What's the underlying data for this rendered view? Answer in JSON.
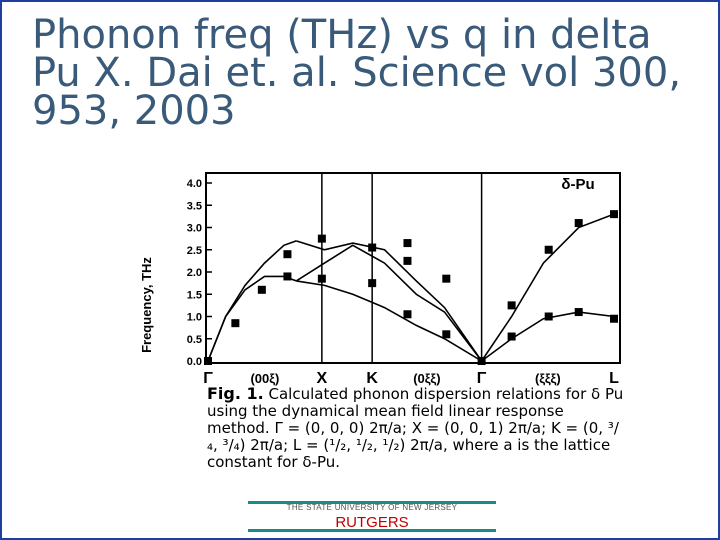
{
  "slide": {
    "title": "Phonon freq (THz) vs q in delta Pu X. Dai et. al. Science vol 300, 953, 2003",
    "caption_label": "Fig. 1.",
    "caption_text": "Calculated phonon dispersion relations for δ Pu using the dynamical mean field linear response method. Γ = (0, 0, 0) 2π/a; X = (0, 0, 1) 2π/a; K = (0, ³/₄, ³/₄) 2π/a; L = (¹/₂, ¹/₂, ¹/₂) 2π/a, where a is the lattice constant for δ-Pu.",
    "footer_top": "THE STATE UNIVERSITY OF NEW JERSEY",
    "footer_brand": "RUTGERS"
  },
  "chart_data": {
    "type": "line",
    "ylabel": "Frequency, THz",
    "label": "δ-Pu",
    "ylim": [
      0,
      4.0
    ],
    "yticks": [
      "0.0",
      "0.5",
      "1.0",
      "1.5",
      "2.0",
      "2.5",
      "3.0",
      "3.5",
      "4.0"
    ],
    "symmetry_points": [
      "Γ",
      "X",
      "K",
      "Γ",
      "L"
    ],
    "directions": [
      "(00ξ)",
      "(0ξξ)",
      "(ξξξ)"
    ],
    "lines": [
      {
        "x": [
          0,
          0.1,
          0.21,
          0.32,
          0.43,
          0.5
        ],
        "y": [
          0.0,
          1.0,
          1.7,
          2.2,
          2.6,
          2.7
        ]
      },
      {
        "x": [
          0,
          0.1,
          0.21,
          0.32,
          0.43,
          0.5
        ],
        "y": [
          0.0,
          1.0,
          1.6,
          1.9,
          1.9,
          1.8
        ]
      },
      {
        "x": [
          0.5,
          0.66,
          0.82,
          1.0,
          1.18,
          1.34,
          1.55
        ],
        "y": [
          2.7,
          2.5,
          2.65,
          2.5,
          1.8,
          1.2,
          0.0
        ]
      },
      {
        "x": [
          0.5,
          0.66,
          0.82,
          1.0,
          1.18,
          1.34,
          1.55
        ],
        "y": [
          1.8,
          2.2,
          2.6,
          2.2,
          1.5,
          1.1,
          0.0
        ]
      },
      {
        "x": [
          0.5,
          0.66,
          0.82,
          1.0,
          1.18,
          1.34,
          1.55
        ],
        "y": [
          1.8,
          1.7,
          1.5,
          1.2,
          0.8,
          0.5,
          0.0
        ]
      },
      {
        "x": [
          1.55,
          1.72,
          1.9,
          2.1,
          2.3
        ],
        "y": [
          0.0,
          1.0,
          2.2,
          3.0,
          3.3
        ]
      },
      {
        "x": [
          1.55,
          1.72,
          1.9,
          2.1,
          2.3
        ],
        "y": [
          0.0,
          0.5,
          0.95,
          1.1,
          1.0
        ]
      }
    ],
    "points": [
      {
        "x": 0.0,
        "y": 0.0
      },
      {
        "x": 0.155,
        "y": 0.85
      },
      {
        "x": 0.305,
        "y": 1.6
      },
      {
        "x": 0.45,
        "y": 1.9
      },
      {
        "x": 0.45,
        "y": 2.4
      },
      {
        "x": 0.645,
        "y": 1.85
      },
      {
        "x": 0.645,
        "y": 2.75
      },
      {
        "x": 0.93,
        "y": 1.75
      },
      {
        "x": 0.93,
        "y": 2.55
      },
      {
        "x": 1.13,
        "y": 2.25
      },
      {
        "x": 1.13,
        "y": 1.05
      },
      {
        "x": 1.13,
        "y": 2.65
      },
      {
        "x": 1.35,
        "y": 0.6
      },
      {
        "x": 1.35,
        "y": 1.85
      },
      {
        "x": 1.55,
        "y": 0.0
      },
      {
        "x": 1.72,
        "y": 0.55
      },
      {
        "x": 1.72,
        "y": 1.25
      },
      {
        "x": 1.93,
        "y": 1.0
      },
      {
        "x": 1.93,
        "y": 2.5
      },
      {
        "x": 2.1,
        "y": 1.1
      },
      {
        "x": 2.1,
        "y": 3.1
      },
      {
        "x": 2.3,
        "y": 0.95
      },
      {
        "x": 2.3,
        "y": 3.3
      }
    ],
    "grid": false
  }
}
